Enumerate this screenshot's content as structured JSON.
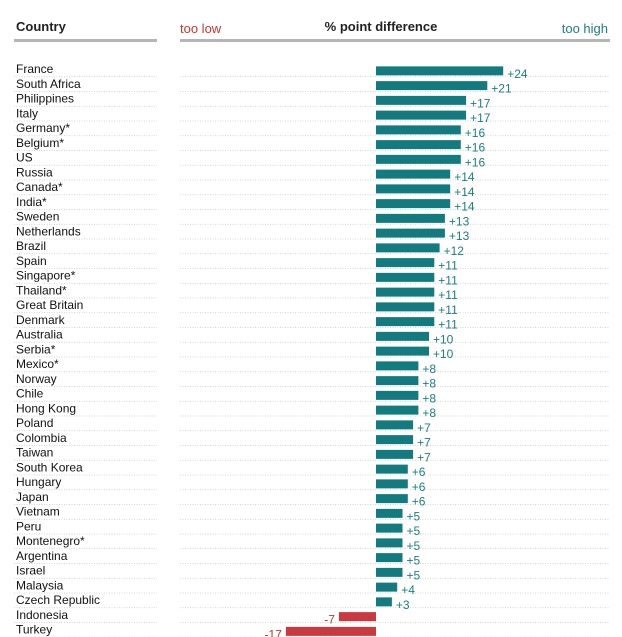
{
  "header": {
    "country_label": "Country",
    "low_label": "too low",
    "mid_label": "% point difference",
    "high_label": "too high"
  },
  "colors": {
    "positive": "#137a7f",
    "negative": "#c9393f",
    "low_text": "#c0392b",
    "high_text": "#1a7f80",
    "header_rule": "#b5b5b5",
    "row_rule": "#c8c8c8"
  },
  "chart_data": {
    "type": "bar",
    "orientation": "horizontal",
    "xlabel": "% point difference",
    "categories": [
      "France",
      "South Africa",
      "Philippines",
      "Italy",
      "Germany*",
      "Belgium*",
      "US",
      "Russia",
      "Canada*",
      "India*",
      "Sweden",
      "Netherlands",
      "Brazil",
      "Spain",
      "Singapore*",
      "Thailand*",
      "Great Britain",
      "Denmark",
      "Australia",
      "Serbia*",
      "Mexico*",
      "Norway",
      "Chile",
      "Hong Kong",
      "Poland",
      "Colombia",
      "Taiwan",
      "South Korea",
      "Hungary",
      "Japan",
      "Vietnam",
      "Peru",
      "Montenegro*",
      "Argentina",
      "Israel",
      "Malaysia",
      "Czech Republic",
      "Indonesia",
      "Turkey"
    ],
    "values": [
      24,
      21,
      17,
      17,
      16,
      16,
      16,
      14,
      14,
      14,
      13,
      13,
      12,
      11,
      11,
      11,
      11,
      11,
      10,
      10,
      8,
      8,
      8,
      8,
      7,
      7,
      7,
      6,
      6,
      6,
      5,
      5,
      5,
      5,
      5,
      4,
      3,
      -7,
      -17
    ],
    "value_labels": [
      "+24",
      "+21",
      "+17",
      "+17",
      "+16",
      "+16",
      "+16",
      "+14",
      "+14",
      "+14",
      "+13",
      "+13",
      "+12",
      "+11",
      "+11",
      "+11",
      "+11",
      "+11",
      "+10",
      "+10",
      "+8",
      "+8",
      "+8",
      "+8",
      "+7",
      "+7",
      "+7",
      "+6",
      "+6",
      "+6",
      "+5",
      "+5",
      "+5",
      "+5",
      "+5",
      "+4",
      "+3",
      "-7",
      "-17"
    ],
    "xlim": [
      -20,
      30
    ],
    "grid": false,
    "legend": "none"
  }
}
